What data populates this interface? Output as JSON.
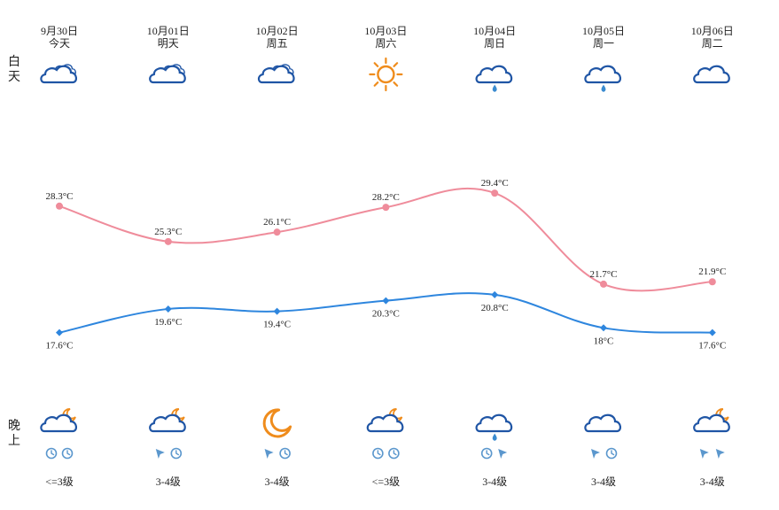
{
  "labels": {
    "day": "白天",
    "night": "晚上"
  },
  "colors": {
    "high": "#ef8c9b",
    "low": "#2e86de",
    "cloud": "#1f55a5",
    "sun": "#ef8c1c",
    "rain": "#3a8bd0",
    "wind": "#5b97cd"
  },
  "days": [
    {
      "date": "9月30日",
      "name": "今天",
      "day_icon": "partly-cloudy-icon",
      "night_icon": "cloudy-night-moon-icon",
      "wind_icons": [
        "clock-icon",
        "clock-icon"
      ],
      "wind_level": "<=3级"
    },
    {
      "date": "10月01日",
      "name": "明天",
      "day_icon": "partly-cloudy-icon",
      "night_icon": "cloudy-night-moon-icon",
      "wind_icons": [
        "arrow-icon",
        "clock-icon"
      ],
      "wind_level": "3-4级"
    },
    {
      "date": "10月02日",
      "name": "周五",
      "day_icon": "partly-cloudy-icon",
      "night_icon": "crescent-moon-icon",
      "wind_icons": [
        "arrow-icon",
        "clock-icon"
      ],
      "wind_level": "3-4级"
    },
    {
      "date": "10月03日",
      "name": "周六",
      "day_icon": "sun-icon",
      "night_icon": "cloudy-night-moon-icon",
      "wind_icons": [
        "clock-icon",
        "clock-icon"
      ],
      "wind_level": "<=3级"
    },
    {
      "date": "10月04日",
      "name": "周日",
      "day_icon": "rain-cloud-icon",
      "night_icon": "rain-cloud-icon",
      "wind_icons": [
        "clock-icon",
        "arrow-icon"
      ],
      "wind_level": "3-4级"
    },
    {
      "date": "10月05日",
      "name": "周一",
      "day_icon": "rain-cloud-icon",
      "night_icon": "cloud-icon",
      "wind_icons": [
        "arrow-icon",
        "clock-icon"
      ],
      "wind_level": "3-4级"
    },
    {
      "date": "10月06日",
      "name": "周二",
      "day_icon": "cloud-icon",
      "night_icon": "cloudy-night-moon-icon",
      "wind_icons": [
        "arrow-icon",
        "arrow-icon"
      ],
      "wind_level": "3-4级"
    }
  ],
  "chart_data": {
    "type": "line",
    "categories": [
      "9月30日",
      "10月01日",
      "10月02日",
      "10月03日",
      "10月04日",
      "10月05日",
      "10月06日"
    ],
    "series": [
      {
        "values": [
          28.3,
          25.3,
          26.1,
          28.2,
          29.4,
          21.7,
          21.9
        ],
        "labels": [
          "28.3°C",
          "25.3°C",
          "26.1°C",
          "28.2°C",
          "29.4°C",
          "21.7°C",
          "21.9°C"
        ]
      },
      {
        "values": [
          17.6,
          19.6,
          19.4,
          20.3,
          20.8,
          18,
          17.6
        ],
        "labels": [
          "17.6°C",
          "19.6°C",
          "19.4°C",
          "20.3°C",
          "20.8°C",
          "18°C",
          "17.6°C"
        ]
      }
    ],
    "grid": false,
    "legend": "none"
  }
}
